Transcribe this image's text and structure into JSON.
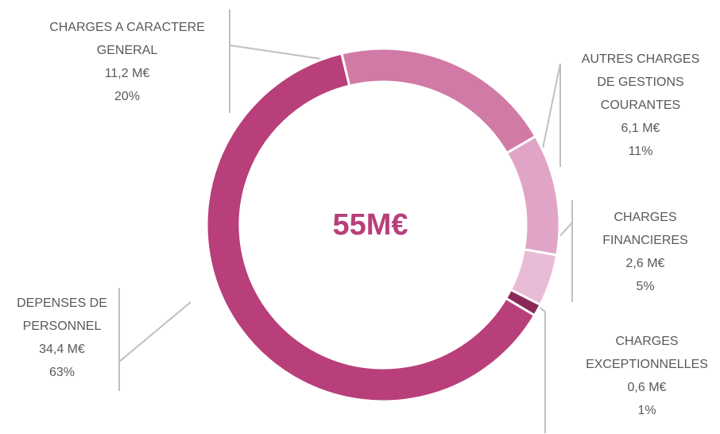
{
  "chart_data": {
    "type": "donut",
    "center_label": "55M€",
    "categories": [
      "CHARGES A CARACTERE GENERAL",
      "AUTRES CHARGES DE GESTIONS COURANTES",
      "CHARGES FINANCIERES",
      "CHARGES EXCEPTIONNELLES",
      "DEPENSES DE PERSONNEL"
    ],
    "values": [
      11.2,
      6.1,
      2.6,
      0.6,
      34.4
    ],
    "value_labels": [
      "11,2 M€",
      "6,1 M€",
      "2,6 M€",
      "0,6 M€",
      "34,4 M€"
    ],
    "percentages": [
      20,
      11,
      5,
      1,
      63
    ],
    "percent_labels": [
      "20%",
      "11%",
      "5%",
      "1%",
      "63%"
    ],
    "colors": [
      "#d17aa6",
      "#e0a5c6",
      "#e8bcd6",
      "#8b2a5a",
      "#b83f7a"
    ],
    "center_color": "#b83f7a"
  }
}
